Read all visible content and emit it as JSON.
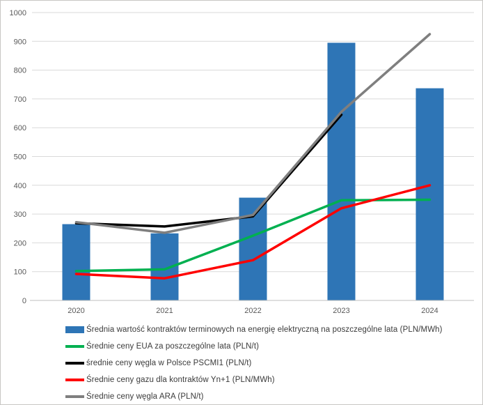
{
  "chart_data": {
    "type": "combo",
    "title": "",
    "categories": [
      "2020",
      "2021",
      "2022",
      "2023",
      "2024"
    ],
    "series": [
      {
        "name": "Średnia wartość kontraktów terminowych na energię elektryczną na poszczególne lata (PLN/MWh)",
        "type": "bar",
        "color": "#2E75B6",
        "values": [
          265,
          233,
          357,
          895,
          737
        ]
      },
      {
        "name": "Średnie ceny EUA za poszczególne lata (PLN/t)",
        "type": "line",
        "color": "#00B050",
        "values": [
          102,
          108,
          225,
          348,
          350
        ]
      },
      {
        "name": "średnie ceny węgla w Polsce PSCMI1 (PLN/t)",
        "type": "line",
        "color": "#000000",
        "values": [
          268,
          257,
          292,
          645,
          null
        ]
      },
      {
        "name": "Średnie ceny gazu dla kontraktów Yn+1 (PLN/MWh)",
        "type": "line",
        "color": "#FF0000",
        "values": [
          92,
          77,
          140,
          320,
          400
        ]
      },
      {
        "name": "Średnie ceny węgla ARA (PLN/t)",
        "type": "line",
        "color": "#7F7F7F",
        "values": [
          272,
          235,
          297,
          655,
          925
        ]
      }
    ],
    "y_axis": {
      "min": 0,
      "max": 1000,
      "step": 100,
      "tick_labels": [
        "0",
        "100",
        "200",
        "300",
        "400",
        "500",
        "600",
        "700",
        "800",
        "900",
        "1000"
      ]
    },
    "x_axis": {
      "tick_labels": [
        "2020",
        "2021",
        "2022",
        "2023",
        "2024"
      ]
    },
    "grid": true,
    "legend_position": "bottom-left"
  },
  "style": {
    "gridline_color": "#D9D9D9",
    "axis_line_color": "#BFBFBF",
    "tick_text_color": "#595959",
    "legend_text_color": "#3A3A3A",
    "background": "#FFFFFF"
  }
}
